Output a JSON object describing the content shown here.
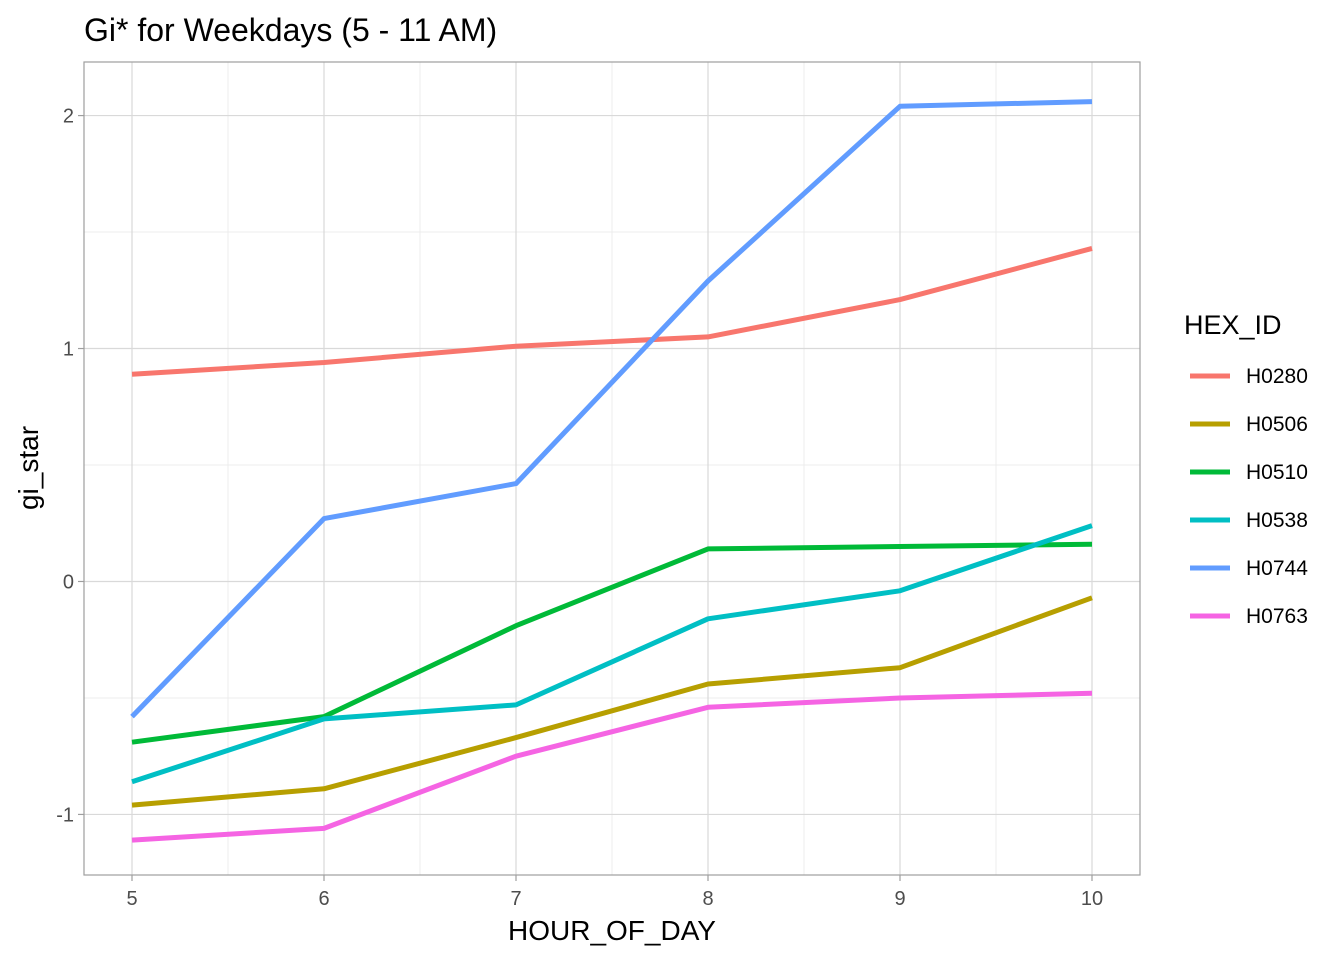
{
  "chart_data": {
    "type": "line",
    "title": "Gi* for Weekdays (5 - 11 AM)",
    "xlabel": "HOUR_OF_DAY",
    "ylabel": "gi_star",
    "x": [
      5,
      6,
      7,
      8,
      9,
      10
    ],
    "x_ticks": [
      5,
      6,
      7,
      8,
      9,
      10
    ],
    "y_ticks": [
      -1,
      0,
      1,
      2
    ],
    "xlim": [
      4.75,
      10.25
    ],
    "ylim": [
      -1.26,
      2.23
    ],
    "grid": true,
    "legend": {
      "title": "HEX_ID",
      "position": "right"
    },
    "series": [
      {
        "name": "H0280",
        "color": "#F8766D",
        "values": [
          0.89,
          0.94,
          1.01,
          1.05,
          1.21,
          1.43
        ]
      },
      {
        "name": "H0506",
        "color": "#B79F00",
        "values": [
          -0.96,
          -0.89,
          -0.67,
          -0.44,
          -0.37,
          -0.07
        ]
      },
      {
        "name": "H0510",
        "color": "#00BA38",
        "values": [
          -0.69,
          -0.58,
          -0.19,
          0.14,
          0.15,
          0.16
        ]
      },
      {
        "name": "H0538",
        "color": "#00BFC4",
        "values": [
          -0.86,
          -0.59,
          -0.53,
          -0.16,
          -0.04,
          0.24
        ]
      },
      {
        "name": "H0744",
        "color": "#619CFF",
        "values": [
          -0.58,
          0.27,
          0.42,
          1.29,
          2.04,
          2.06
        ]
      },
      {
        "name": "H0763",
        "color": "#F564E3",
        "values": [
          -1.11,
          -1.06,
          -0.75,
          -0.54,
          -0.5,
          -0.48
        ]
      }
    ]
  }
}
